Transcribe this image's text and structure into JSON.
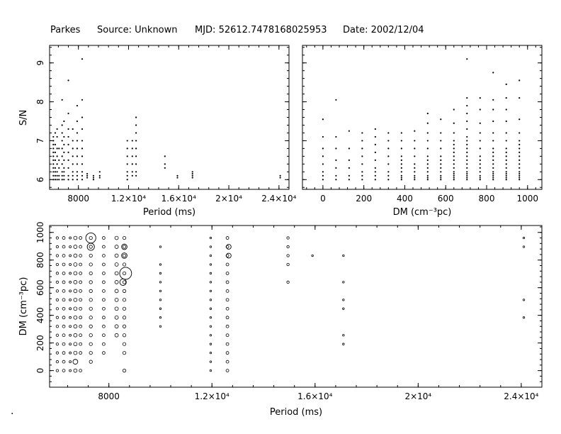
{
  "header": {
    "telescope": "Parkes",
    "source": "Source: Unknown",
    "mjd": "MJD: 52612.7478168025953",
    "date": "Date: 2002/12/04"
  },
  "footer_mark": ".",
  "chart_data": [
    {
      "type": "scatter",
      "title": "",
      "xlabel": "Period (ms)",
      "ylabel": "S/N",
      "xlim": [
        5700,
        24800
      ],
      "ylim": [
        5.75,
        9.45
      ],
      "x_ticks": [
        {
          "value": 8000,
          "label": "8000"
        },
        {
          "value": 12000,
          "label": "1.2×10⁴"
        },
        {
          "value": 16000,
          "label": "1.6×10⁴"
        },
        {
          "value": 20000,
          "label": "2×10⁴"
        },
        {
          "value": 24000,
          "label": "2.4×10⁴"
        }
      ],
      "y_ticks": [
        {
          "value": 6,
          "label": "6"
        },
        {
          "value": 7,
          "label": "7"
        },
        {
          "value": 8,
          "label": "8"
        },
        {
          "value": 9,
          "label": "9"
        }
      ],
      "candidate_columns": [
        {
          "period": 6000,
          "sn": [
            6.0,
            6.1,
            6.2,
            6.3,
            6.4,
            6.5,
            6.6,
            6.7,
            6.8,
            6.9,
            7.0,
            7.1
          ]
        },
        {
          "period": 6150,
          "sn": [
            6.0,
            6.1,
            6.2,
            6.3,
            6.5,
            6.7,
            6.9,
            7.2
          ]
        },
        {
          "period": 6300,
          "sn": [
            6.0,
            6.1,
            6.2,
            6.4,
            6.6,
            6.8,
            7.1,
            7.3
          ]
        },
        {
          "period": 6450,
          "sn": [
            6.0,
            6.1,
            6.3,
            6.5,
            6.8
          ]
        },
        {
          "period": 6700,
          "sn": [
            6.0,
            6.1,
            6.2,
            6.4,
            6.6,
            6.8,
            7.0,
            7.2,
            7.4,
            8.05
          ]
        },
        {
          "period": 6850,
          "sn": [
            6.0,
            6.1,
            6.2,
            6.3,
            6.5,
            6.7,
            6.9,
            7.1,
            7.5
          ]
        },
        {
          "period": 7200,
          "sn": [
            6.0,
            6.1,
            6.3,
            6.5,
            6.7,
            6.9,
            7.1,
            7.3,
            7.7,
            8.55
          ]
        },
        {
          "period": 7550,
          "sn": [
            6.0,
            6.1,
            6.2,
            6.4,
            6.6,
            6.8,
            7.0,
            7.3
          ]
        },
        {
          "period": 7900,
          "sn": [
            6.0,
            6.1,
            6.2,
            6.4,
            6.6,
            6.8,
            7.0,
            7.2,
            7.5,
            7.9
          ]
        },
        {
          "period": 8300,
          "sn": [
            6.0,
            6.1,
            6.2,
            6.4,
            6.6,
            6.8,
            7.0,
            7.3,
            7.6,
            8.05,
            9.1
          ]
        },
        {
          "period": 8700,
          "sn": [
            6.05,
            6.1,
            6.15
          ]
        },
        {
          "period": 9200,
          "sn": [
            6.0,
            6.05,
            6.1
          ]
        },
        {
          "period": 9700,
          "sn": [
            6.05,
            6.1,
            6.2
          ]
        },
        {
          "period": 11900,
          "sn": [
            6.0,
            6.1,
            6.2,
            6.4,
            6.6,
            6.8,
            7.0
          ]
        },
        {
          "period": 12300,
          "sn": [
            6.1,
            6.2,
            6.4,
            6.6,
            6.8,
            7.0
          ]
        },
        {
          "period": 12600,
          "sn": [
            6.1,
            6.2,
            6.4,
            6.6,
            6.8,
            7.0,
            7.2,
            7.4,
            7.6
          ]
        },
        {
          "period": 14900,
          "sn": [
            6.3,
            6.4,
            6.6
          ]
        },
        {
          "period": 15900,
          "sn": [
            6.05,
            6.1
          ]
        },
        {
          "period": 17100,
          "sn": [
            6.05,
            6.1,
            6.15,
            6.2
          ]
        },
        {
          "period": 24100,
          "sn": [
            6.05,
            6.1
          ]
        }
      ]
    },
    {
      "type": "scatter",
      "title": "",
      "xlabel": "DM (cm⁻³pc)",
      "ylabel": "",
      "xlim": [
        -100,
        1070
      ],
      "ylim": [
        5.75,
        9.45
      ],
      "x_ticks": [
        {
          "value": 0,
          "label": "0"
        },
        {
          "value": 200,
          "label": "200"
        },
        {
          "value": 400,
          "label": "400"
        },
        {
          "value": 600,
          "label": "600"
        },
        {
          "value": 800,
          "label": "800"
        },
        {
          "value": 1000,
          "label": "1000"
        }
      ],
      "y_ticks": [
        {
          "value": 6,
          "label": "6"
        },
        {
          "value": 7,
          "label": "7"
        },
        {
          "value": 8,
          "label": "8"
        },
        {
          "value": 9,
          "label": "9"
        }
      ],
      "candidate_columns": [
        {
          "dm": 0,
          "sn": [
            6.0,
            6.1,
            6.2,
            6.4,
            6.6,
            6.8,
            7.1,
            7.55
          ]
        },
        {
          "dm": 64,
          "sn": [
            6.0,
            6.1,
            6.3,
            6.5,
            6.8,
            7.1,
            8.05
          ]
        },
        {
          "dm": 128,
          "sn": [
            6.0,
            6.1,
            6.3,
            6.5,
            6.8,
            7.25
          ]
        },
        {
          "dm": 192,
          "sn": [
            6.0,
            6.1,
            6.2,
            6.4,
            6.6,
            6.8,
            7.0,
            7.2
          ]
        },
        {
          "dm": 256,
          "sn": [
            6.0,
            6.1,
            6.2,
            6.3,
            6.5,
            6.7,
            6.9,
            7.1,
            7.3
          ]
        },
        {
          "dm": 320,
          "sn": [
            6.0,
            6.1,
            6.2,
            6.4,
            6.6,
            6.8,
            7.0,
            7.2
          ]
        },
        {
          "dm": 384,
          "sn": [
            6.0,
            6.05,
            6.1,
            6.2,
            6.3,
            6.4,
            6.5,
            6.6,
            6.8,
            7.0,
            7.2
          ]
        },
        {
          "dm": 448,
          "sn": [
            6.0,
            6.05,
            6.1,
            6.2,
            6.3,
            6.4,
            6.6,
            6.8,
            7.0,
            7.25
          ]
        },
        {
          "dm": 512,
          "sn": [
            6.0,
            6.05,
            6.1,
            6.2,
            6.3,
            6.4,
            6.5,
            6.6,
            6.8,
            7.0,
            7.2,
            7.45,
            7.7
          ]
        },
        {
          "dm": 576,
          "sn": [
            6.0,
            6.05,
            6.1,
            6.2,
            6.3,
            6.4,
            6.5,
            6.6,
            6.8,
            7.0,
            7.2,
            7.55
          ]
        },
        {
          "dm": 640,
          "sn": [
            6.0,
            6.05,
            6.1,
            6.15,
            6.2,
            6.3,
            6.4,
            6.5,
            6.6,
            6.7,
            6.8,
            6.9,
            7.0,
            7.2,
            7.45,
            7.8
          ]
        },
        {
          "dm": 704,
          "sn": [
            6.0,
            6.05,
            6.1,
            6.15,
            6.2,
            6.3,
            6.4,
            6.5,
            6.6,
            6.7,
            6.8,
            6.9,
            7.0,
            7.1,
            7.3,
            7.5,
            7.7,
            7.9,
            8.1,
            9.1
          ]
        },
        {
          "dm": 768,
          "sn": [
            6.0,
            6.05,
            6.1,
            6.2,
            6.3,
            6.4,
            6.5,
            6.6,
            6.8,
            7.0,
            7.2,
            7.45,
            7.8,
            8.1
          ]
        },
        {
          "dm": 832,
          "sn": [
            6.0,
            6.05,
            6.1,
            6.15,
            6.2,
            6.3,
            6.4,
            6.5,
            6.6,
            6.7,
            6.8,
            7.0,
            7.2,
            7.5,
            7.8,
            8.05,
            8.75
          ]
        },
        {
          "dm": 896,
          "sn": [
            6.0,
            6.05,
            6.1,
            6.15,
            6.2,
            6.3,
            6.4,
            6.5,
            6.6,
            6.7,
            6.8,
            7.0,
            7.2,
            7.5,
            7.8,
            8.1,
            8.45
          ]
        },
        {
          "dm": 960,
          "sn": [
            6.0,
            6.05,
            6.1,
            6.15,
            6.2,
            6.3,
            6.4,
            6.5,
            6.6,
            6.7,
            6.8,
            6.9,
            7.0,
            7.2,
            7.55,
            8.1,
            8.55
          ]
        }
      ]
    },
    {
      "type": "scatter",
      "title": "",
      "xlabel": "Period (ms)",
      "ylabel": "DM (cm⁻³pc)",
      "xlim": [
        5700,
        24800
      ],
      "ylim": [
        -120,
        1050
      ],
      "x_ticks": [
        {
          "value": 8000,
          "label": "8000"
        },
        {
          "value": 12000,
          "label": "1.2×10⁴"
        },
        {
          "value": 16000,
          "label": "1.6×10⁴"
        },
        {
          "value": 20000,
          "label": "2×10⁴"
        },
        {
          "value": 24000,
          "label": "2.4×10⁴"
        }
      ],
      "y_ticks": [
        {
          "value": 0,
          "label": "0"
        },
        {
          "value": 200,
          "label": "200"
        },
        {
          "value": 400,
          "label": "400"
        },
        {
          "value": 600,
          "label": "600"
        },
        {
          "value": 800,
          "label": "800"
        },
        {
          "value": 1000,
          "label": "1000"
        }
      ],
      "marker_encoding": "circle size proportional to S/N",
      "candidates": [
        {
          "period": 6000,
          "dm": [
            0,
            64,
            128,
            192,
            256,
            320,
            384,
            448,
            512,
            576,
            640,
            704,
            768,
            832,
            896,
            960
          ],
          "sn": 6.3
        },
        {
          "period": 6250,
          "dm": [
            0,
            64,
            128,
            192,
            256,
            320,
            384,
            448,
            512,
            576,
            640,
            704,
            768,
            832,
            896,
            960
          ],
          "sn": 6.4
        },
        {
          "period": 6500,
          "dm": [
            0,
            64,
            128,
            192,
            256,
            320,
            384,
            448,
            512,
            576,
            640,
            704,
            768,
            832,
            896,
            960
          ],
          "sn": 6.2
        },
        {
          "period": 6700,
          "dm": [
            0,
            128,
            192,
            256,
            320,
            384,
            448,
            512,
            576,
            640,
            704,
            768,
            832,
            896,
            960
          ],
          "sn": 6.6
        },
        {
          "period": 6900,
          "dm": [
            0,
            128,
            192,
            256,
            320,
            384,
            448,
            512,
            576,
            640,
            704,
            768,
            832,
            896,
            960
          ],
          "sn": 6.4
        },
        {
          "period": 7300,
          "dm": [
            64,
            128,
            192,
            256,
            320,
            384,
            448,
            512,
            576,
            640,
            704,
            768,
            832,
            896,
            960
          ],
          "sn": 6.5
        },
        {
          "period": 7800,
          "dm": [
            128,
            192,
            256,
            320,
            384,
            448,
            512,
            576,
            640,
            704,
            768,
            832,
            896,
            960
          ],
          "sn": 6.4
        },
        {
          "period": 8300,
          "dm": [
            256,
            320,
            384,
            448,
            512,
            576,
            640,
            704,
            768,
            832,
            896,
            960
          ],
          "sn": 6.6
        },
        {
          "period": 8600,
          "dm": [
            0,
            128,
            192,
            256,
            320,
            384,
            448,
            512,
            576,
            640,
            704,
            768,
            832,
            896,
            960
          ],
          "sn": 6.5
        },
        {
          "period": 10000,
          "dm": [
            320,
            384,
            448,
            512,
            576,
            640,
            704,
            768,
            896
          ],
          "sn": 6.1
        },
        {
          "period": 11950,
          "dm": [
            0,
            64,
            128,
            192,
            256,
            320,
            384,
            448,
            512,
            576,
            640,
            704,
            768,
            832,
            896,
            960
          ],
          "sn": 6.1
        },
        {
          "period": 12600,
          "dm": [
            0,
            64,
            128,
            192,
            256,
            320,
            384,
            448,
            512,
            576,
            640,
            704,
            768,
            832,
            896,
            960
          ],
          "sn": 6.4
        },
        {
          "period": 14950,
          "dm": [
            640,
            768,
            832,
            896,
            960
          ],
          "sn": 6.3
        },
        {
          "period": 15900,
          "dm": [
            832
          ],
          "sn": 6.1
        },
        {
          "period": 17100,
          "dm": [
            192,
            256,
            448,
            512,
            640,
            832
          ],
          "sn": 6.1
        },
        {
          "period": 24100,
          "dm": [
            384,
            512,
            896,
            960
          ],
          "sn": 6.1
        }
      ],
      "highlighted": [
        {
          "period": 6700,
          "dm": 64,
          "sn": 7.0
        },
        {
          "period": 7300,
          "dm": 896,
          "sn": 7.7
        },
        {
          "period": 7300,
          "dm": 960,
          "sn": 8.55
        },
        {
          "period": 8600,
          "dm": 832,
          "sn": 7.2
        },
        {
          "period": 8600,
          "dm": 896,
          "sn": 7.2
        },
        {
          "period": 8650,
          "dm": 704,
          "sn": 9.1
        },
        {
          "period": 8550,
          "dm": 640,
          "sn": 7.5
        },
        {
          "period": 12650,
          "dm": 896,
          "sn": 7.0
        },
        {
          "period": 12650,
          "dm": 832,
          "sn": 7.0
        }
      ]
    }
  ]
}
